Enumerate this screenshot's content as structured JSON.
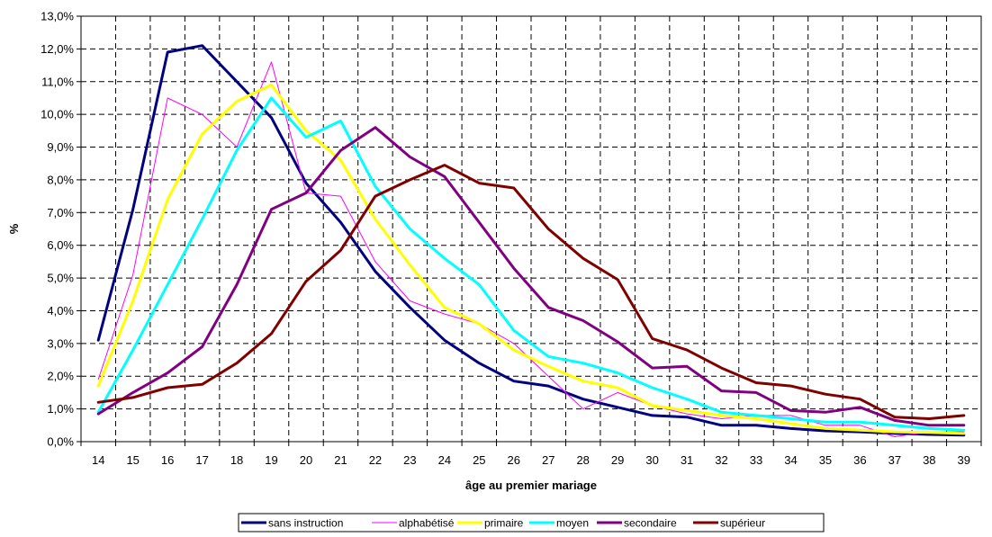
{
  "chart_data": {
    "type": "line",
    "title": "",
    "xlabel": "âge au premier mariage",
    "ylabel": "%",
    "x": [
      14,
      15,
      16,
      17,
      18,
      19,
      20,
      21,
      22,
      23,
      24,
      25,
      26,
      27,
      28,
      29,
      30,
      31,
      32,
      33,
      34,
      35,
      36,
      37,
      38,
      39
    ],
    "x_tick_labels": [
      "14",
      "15",
      "16",
      "17",
      "18",
      "19",
      "20",
      "21",
      "22",
      "23",
      "24",
      "25",
      "26",
      "27",
      "28",
      "29",
      "30",
      "31",
      "32",
      "33",
      "34",
      "35",
      "36",
      "37",
      "38",
      "39"
    ],
    "ylim": [
      0,
      13
    ],
    "y_tick_values": [
      0,
      1,
      2,
      3,
      4,
      5,
      6,
      7,
      8,
      9,
      10,
      11,
      12,
      13
    ],
    "y_tick_labels": [
      "0,0%",
      "1,0%",
      "2,0%",
      "3,0%",
      "4,0%",
      "5,0%",
      "6,0%",
      "7,0%",
      "8,0%",
      "9,0%",
      "10,0%",
      "11,0%",
      "12,0%",
      "13,0%"
    ],
    "grid": true,
    "legend_position": "bottom",
    "series": [
      {
        "name": "sans instruction",
        "color": "#000080",
        "width": 3,
        "values": [
          3.1,
          7.1,
          11.9,
          12.1,
          11.0,
          9.9,
          7.9,
          6.7,
          5.2,
          4.1,
          3.1,
          2.4,
          1.85,
          1.7,
          1.3,
          1.05,
          0.8,
          0.75,
          0.5,
          0.5,
          0.4,
          0.33,
          0.3,
          0.25,
          0.22,
          0.2
        ]
      },
      {
        "name": "alphabétisé",
        "color": "#ff00ff",
        "width": 1,
        "values": [
          1.9,
          5.1,
          10.5,
          10.0,
          9.0,
          11.6,
          7.6,
          7.5,
          5.5,
          4.3,
          3.9,
          3.6,
          3.0,
          2.0,
          1.0,
          1.5,
          1.1,
          0.85,
          0.7,
          0.8,
          0.8,
          0.5,
          0.5,
          0.15,
          0.3,
          0.3
        ]
      },
      {
        "name": "primaire",
        "color": "#ffff00",
        "width": 3,
        "values": [
          1.7,
          4.3,
          7.4,
          9.4,
          10.4,
          10.9,
          9.5,
          8.6,
          6.8,
          5.4,
          4.1,
          3.6,
          2.8,
          2.3,
          1.85,
          1.65,
          1.1,
          0.95,
          0.8,
          0.7,
          0.55,
          0.4,
          0.35,
          0.3,
          0.28,
          0.25
        ]
      },
      {
        "name": "moyen",
        "color": "#00ffff",
        "width": 3,
        "values": [
          0.9,
          2.8,
          4.8,
          6.8,
          8.9,
          10.5,
          9.3,
          9.8,
          7.8,
          6.5,
          5.6,
          4.8,
          3.4,
          2.6,
          2.4,
          2.1,
          1.65,
          1.3,
          0.9,
          0.8,
          0.7,
          0.6,
          0.6,
          0.5,
          0.4,
          0.35
        ]
      },
      {
        "name": "secondaire",
        "color": "#800080",
        "width": 3,
        "values": [
          0.85,
          1.5,
          2.1,
          2.9,
          4.8,
          7.1,
          7.6,
          8.9,
          9.6,
          8.7,
          8.1,
          6.7,
          5.3,
          4.1,
          3.7,
          3.05,
          2.25,
          2.3,
          1.55,
          1.5,
          0.95,
          0.9,
          1.05,
          0.65,
          0.5,
          0.5
        ]
      },
      {
        "name": "supérieur",
        "color": "#800000",
        "width": 3,
        "values": [
          1.2,
          1.35,
          1.65,
          1.75,
          2.4,
          3.3,
          4.9,
          5.85,
          7.5,
          8.0,
          8.45,
          7.9,
          7.75,
          6.5,
          5.6,
          4.95,
          3.15,
          2.8,
          2.25,
          1.8,
          1.7,
          1.45,
          1.3,
          0.75,
          0.7,
          0.8
        ]
      }
    ]
  }
}
